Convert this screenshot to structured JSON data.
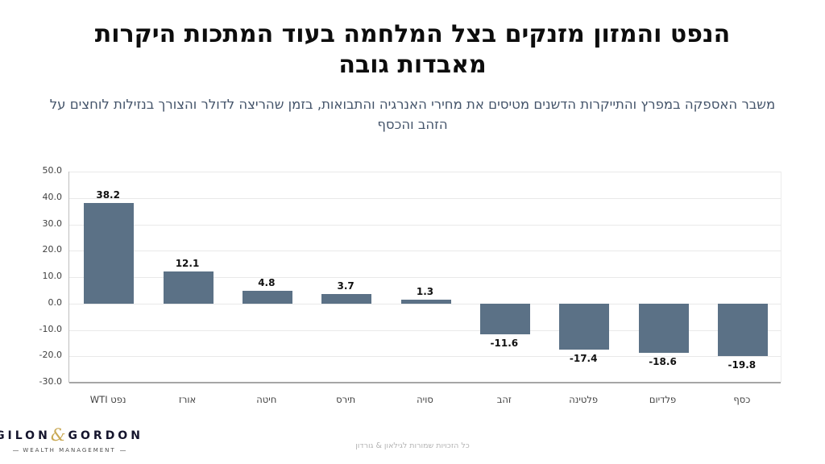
{
  "slide": {
    "title_lines": [
      "הנפט והמזון מזנקים בצל המלחמה בעוד המתכות היקרות",
      "מאבדות גובה"
    ],
    "subtitle_lines": [
      "משבר האספקה במפרץ והתייקרות הדשנים מטיסים את מחירי האנרגיה והתבואות, בזמן שהריצה לדולר והצורך בנזילות לוחצים על",
      "הזהב והכסף"
    ],
    "footer": "כל הזכויות שמורות לגילאון & גורדון"
  },
  "logo": {
    "name_left": "GILON",
    "ampersand": "&",
    "name_right": "GORDON",
    "tagline": "WEALTH MANAGEMENT"
  },
  "chart_data": {
    "type": "bar",
    "title": "",
    "xlabel": "",
    "ylabel": "",
    "categories": [
      "נפט WTI",
      "אורז",
      "חיטה",
      "תירס",
      "סויה",
      "זהב",
      "פלטינה",
      "פלדיום",
      "כסף"
    ],
    "values": [
      38.2,
      12.1,
      4.8,
      3.7,
      1.3,
      -11.6,
      -17.4,
      -18.6,
      -19.8
    ],
    "value_labels": [
      "38.2",
      "12.1",
      "4.8",
      "3.7",
      "1.3",
      "-11.6",
      "-17.4",
      "-18.6",
      "-19.8"
    ],
    "ylim": [
      -30,
      50
    ],
    "ytick_step": 10,
    "ytick_labels": [
      "50.0",
      "40.0",
      "30.0",
      "20.0",
      "10.0",
      "0.0",
      "-10.0",
      "-20.0",
      "-30.0"
    ],
    "grid": true,
    "legend": "none",
    "bar_color": "#5b7186"
  },
  "colors": {
    "bar": "#5b7186",
    "subtitle": "#44546a",
    "gridline": "#e9e9e9",
    "axis_bottom": "#a6a6a6",
    "axis_left": "#bfbfbf",
    "logo_gold": "#c9a955",
    "logo_navy": "#15152d"
  }
}
